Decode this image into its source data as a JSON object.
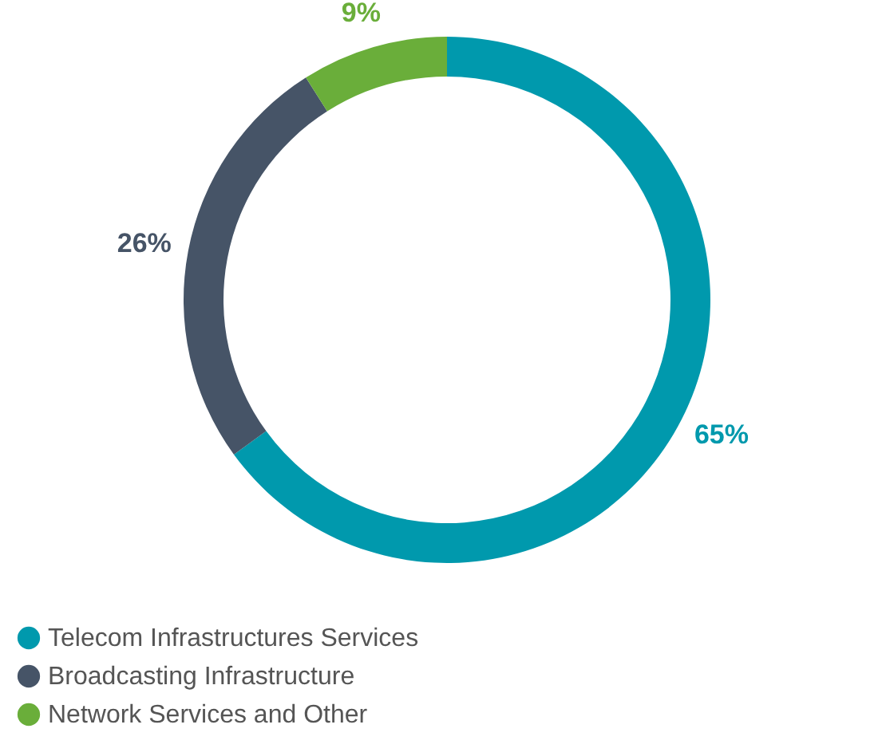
{
  "chart_data": {
    "type": "donut",
    "categories": [
      "Telecom Infrastructures Services",
      "Broadcasting Infrastructure",
      "Network Services and Other"
    ],
    "values": [
      65,
      26,
      9
    ],
    "colors": [
      "#0099ad",
      "#465467",
      "#6aae3a"
    ],
    "value_labels": [
      "65%",
      "26%",
      "9%"
    ],
    "legend": "bottom left"
  }
}
